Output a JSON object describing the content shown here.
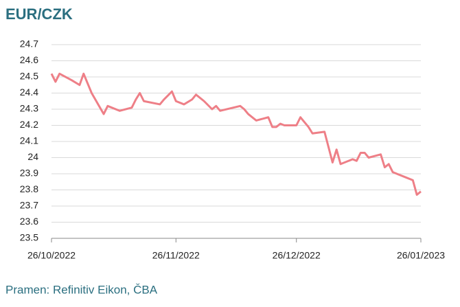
{
  "chart_data": {
    "type": "line",
    "title": "EUR/CZK",
    "source": "Pramen: Refinitiv Eikon, ČBA",
    "x": [
      "26/10/2022",
      "27/10/2022",
      "28/10/2022",
      "31/10/2022",
      "02/11/2022",
      "03/11/2022",
      "05/11/2022",
      "08/11/2022",
      "09/11/2022",
      "12/11/2022",
      "15/11/2022",
      "16/11/2022",
      "17/11/2022",
      "18/11/2022",
      "22/11/2022",
      "23/11/2022",
      "25/11/2022",
      "26/11/2022",
      "28/11/2022",
      "30/11/2022",
      "01/12/2022",
      "03/12/2022",
      "05/12/2022",
      "06/12/2022",
      "07/12/2022",
      "12/12/2022",
      "13/12/2022",
      "14/12/2022",
      "16/12/2022",
      "19/12/2022",
      "20/12/2022",
      "21/12/2022",
      "22/12/2022",
      "23/12/2022",
      "26/12/2022",
      "27/12/2022",
      "28/12/2022",
      "29/12/2022",
      "30/12/2022",
      "02/01/2023",
      "04/01/2023",
      "05/01/2023",
      "06/01/2023",
      "09/01/2023",
      "10/01/2023",
      "11/01/2023",
      "12/01/2023",
      "13/01/2023",
      "16/01/2023",
      "17/01/2023",
      "18/01/2023",
      "19/01/2023",
      "22/01/2023",
      "24/01/2023",
      "25/01/2023",
      "26/01/2023"
    ],
    "series": [
      {
        "name": "EUR/CZK",
        "color": "#ee7f87",
        "values": [
          24.52,
          24.47,
          24.52,
          24.48,
          24.45,
          24.52,
          24.4,
          24.27,
          24.32,
          24.29,
          24.31,
          24.36,
          24.4,
          24.35,
          24.33,
          24.36,
          24.41,
          24.35,
          24.33,
          24.36,
          24.39,
          24.35,
          24.3,
          24.32,
          24.29,
          24.32,
          24.3,
          24.27,
          24.23,
          24.25,
          24.19,
          24.19,
          24.21,
          24.2,
          24.2,
          24.25,
          24.22,
          24.19,
          24.15,
          24.16,
          23.97,
          24.05,
          23.96,
          23.99,
          23.98,
          24.03,
          24.03,
          24.0,
          24.02,
          23.94,
          23.96,
          23.91,
          23.88,
          23.86,
          23.77,
          23.79
        ]
      }
    ],
    "xlim": [
      "26/10/2022",
      "26/01/2023"
    ],
    "xticks": [
      "26/10/2022",
      "26/11/2022",
      "26/12/2022",
      "26/01/2023"
    ],
    "ylim": [
      23.5,
      24.7
    ],
    "yticks": [
      23.5,
      23.6,
      23.7,
      23.8,
      23.9,
      24,
      24.1,
      24.2,
      24.3,
      24.4,
      24.5,
      24.6,
      24.7
    ],
    "grid": true
  }
}
